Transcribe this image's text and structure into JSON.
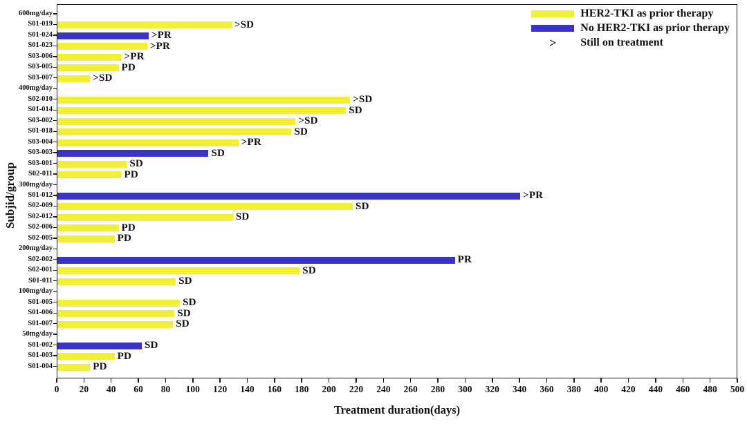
{
  "chart_data": {
    "type": "bar",
    "orientation": "horizontal",
    "title": "",
    "xlabel": "Treatment duration(days)",
    "ylabel": "Subjid/group",
    "xlim": [
      0,
      500
    ],
    "xtick_step": 20,
    "xticks": [
      0,
      20,
      40,
      60,
      80,
      100,
      120,
      140,
      160,
      180,
      200,
      220,
      240,
      260,
      280,
      300,
      320,
      340,
      360,
      380,
      400,
      420,
      440,
      460,
      480,
      500
    ],
    "grid": false,
    "legend_position": "top-right",
    "colors": {
      "her2_tki": "#f2ef38",
      "no_her2_tki": "#3a33c4",
      "axis": "#1b1b1b"
    },
    "legend": [
      {
        "type": "swatch",
        "color_key": "her2_tki",
        "label": "HER2-TKI as prior therapy"
      },
      {
        "type": "swatch",
        "color_key": "no_her2_tki",
        "label": "No HER2-TKI as prior therapy"
      },
      {
        "type": "symbol",
        "symbol": ">",
        "label": "Still on treatment"
      }
    ],
    "annotation_legend_note": "> prefix on a bar annotation means still on treatment",
    "groups": [
      {
        "dose": "600mg/day",
        "subjects": [
          {
            "id": "S01-019",
            "days": 128,
            "therapy": "her2_tki",
            "annotation": ">SD"
          },
          {
            "id": "S01-024",
            "days": 67,
            "therapy": "no_her2_tki",
            "annotation": ">PR"
          },
          {
            "id": "S01-023",
            "days": 66,
            "therapy": "her2_tki",
            "annotation": ">PR"
          },
          {
            "id": "S03-006",
            "days": 47,
            "therapy": "her2_tki",
            "annotation": ">PR"
          },
          {
            "id": "S03-005",
            "days": 45,
            "therapy": "her2_tki",
            "annotation": "PD"
          },
          {
            "id": "S03-007",
            "days": 24,
            "therapy": "her2_tki",
            "annotation": ">SD"
          }
        ]
      },
      {
        "dose": "400mg/day",
        "subjects": [
          {
            "id": "S02-010",
            "days": 215,
            "therapy": "her2_tki",
            "annotation": ">SD"
          },
          {
            "id": "S01-014",
            "days": 212,
            "therapy": "her2_tki",
            "annotation": "SD"
          },
          {
            "id": "S03-002",
            "days": 175,
            "therapy": "her2_tki",
            "annotation": ">SD"
          },
          {
            "id": "S01-018",
            "days": 172,
            "therapy": "her2_tki",
            "annotation": "SD"
          },
          {
            "id": "S03-004",
            "days": 133,
            "therapy": "her2_tki",
            "annotation": ">PR"
          },
          {
            "id": "S03-003",
            "days": 111,
            "therapy": "no_her2_tki",
            "annotation": "SD"
          },
          {
            "id": "S03-001",
            "days": 51,
            "therapy": "her2_tki",
            "annotation": "SD"
          },
          {
            "id": "S02-011",
            "days": 47,
            "therapy": "her2_tki",
            "annotation": "PD"
          }
        ]
      },
      {
        "dose": "300mg/day",
        "subjects": [
          {
            "id": "S01-012",
            "days": 340,
            "therapy": "no_her2_tki",
            "annotation": ">PR"
          },
          {
            "id": "S02-009",
            "days": 217,
            "therapy": "her2_tki",
            "annotation": "SD"
          },
          {
            "id": "S02-012",
            "days": 129,
            "therapy": "her2_tki",
            "annotation": "SD"
          },
          {
            "id": "S02-006",
            "days": 45,
            "therapy": "her2_tki",
            "annotation": "PD"
          },
          {
            "id": "S02-005",
            "days": 42,
            "therapy": "her2_tki",
            "annotation": "PD"
          }
        ]
      },
      {
        "dose": "200mg/day",
        "subjects": [
          {
            "id": "S02-002",
            "days": 292,
            "therapy": "no_her2_tki",
            "annotation": "PR"
          },
          {
            "id": "S02-001",
            "days": 178,
            "therapy": "her2_tki",
            "annotation": "SD"
          },
          {
            "id": "S01-011",
            "days": 87,
            "therapy": "her2_tki",
            "annotation": "SD"
          }
        ]
      },
      {
        "dose": "100mg/day",
        "subjects": [
          {
            "id": "S01-005",
            "days": 90,
            "therapy": "her2_tki",
            "annotation": "SD"
          },
          {
            "id": "S01-006",
            "days": 86,
            "therapy": "her2_tki",
            "annotation": "SD"
          },
          {
            "id": "S01-007",
            "days": 85,
            "therapy": "her2_tki",
            "annotation": "SD"
          }
        ]
      },
      {
        "dose": "50mg/day",
        "subjects": [
          {
            "id": "S01-002",
            "days": 62,
            "therapy": "no_her2_tki",
            "annotation": "SD"
          },
          {
            "id": "S01-003",
            "days": 42,
            "therapy": "her2_tki",
            "annotation": "PD"
          },
          {
            "id": "S01-004",
            "days": 24,
            "therapy": "her2_tki",
            "annotation": "PD"
          }
        ]
      }
    ]
  }
}
